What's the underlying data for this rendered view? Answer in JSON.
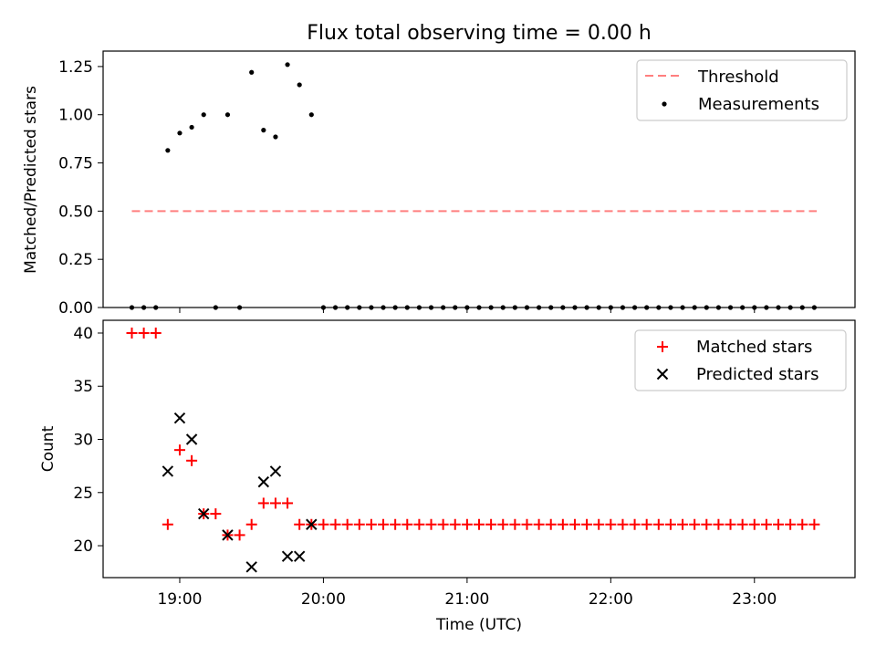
{
  "title": "Flux total observing time = 0.00 h",
  "chart_data": [
    {
      "type": "scatter",
      "ylabel": "Matched/Predicted stars",
      "ylim": [
        0,
        1.33
      ],
      "xlim": [
        "18:28",
        "23:42"
      ],
      "yticks": [
        0.0,
        0.25,
        0.5,
        0.75,
        1.0,
        1.25
      ],
      "ytick_labels": [
        "0.00",
        "0.25",
        "0.50",
        "0.75",
        "1.00",
        "1.25"
      ],
      "legend_position": "top-right",
      "threshold": {
        "name": "Threshold",
        "color": "#ff7f7f",
        "y": 0.5,
        "x": [
          "18:40",
          "23:26"
        ]
      },
      "measurements": {
        "name": "Measurements",
        "color": "#000000",
        "x": [
          "18:40",
          "18:45",
          "18:50",
          "18:55",
          "19:00",
          "19:05",
          "19:10",
          "19:15",
          "19:20",
          "19:25",
          "19:30",
          "19:35",
          "19:40",
          "19:45",
          "19:50",
          "19:55",
          "20:00",
          "20:05",
          "20:10",
          "20:15",
          "20:20",
          "20:25",
          "20:30",
          "20:35",
          "20:40",
          "20:45",
          "20:50",
          "20:55",
          "21:00",
          "21:05",
          "21:10",
          "21:15",
          "21:20",
          "21:25",
          "21:30",
          "21:35",
          "21:40",
          "21:45",
          "21:50",
          "21:55",
          "22:00",
          "22:05",
          "22:10",
          "22:15",
          "22:20",
          "22:25",
          "22:30",
          "22:35",
          "22:40",
          "22:45",
          "22:50",
          "22:55",
          "23:00",
          "23:05",
          "23:10",
          "23:15",
          "23:20",
          "23:25"
        ],
        "y": [
          0,
          0,
          0,
          0.815,
          0.905,
          0.935,
          1.0,
          0,
          1.0,
          0,
          1.22,
          0.92,
          0.885,
          1.26,
          1.155,
          1.0,
          0,
          0,
          0,
          0,
          0,
          0,
          0,
          0,
          0,
          0,
          0,
          0,
          0,
          0,
          0,
          0,
          0,
          0,
          0,
          0,
          0,
          0,
          0,
          0,
          0,
          0,
          0,
          0,
          0,
          0,
          0,
          0,
          0,
          0,
          0,
          0,
          0,
          0,
          0,
          0,
          0,
          0
        ]
      }
    },
    {
      "type": "scatter",
      "xlabel": "Time (UTC)",
      "ylabel": "Count",
      "ylim": [
        17,
        41.2
      ],
      "xlim": [
        "18:28",
        "23:42"
      ],
      "yticks": [
        20,
        25,
        30,
        35,
        40
      ],
      "xtick_labels": [
        "19:00",
        "20:00",
        "21:00",
        "22:00",
        "23:00"
      ],
      "legend_position": "top-right",
      "series": [
        {
          "name": "Matched stars",
          "marker": "plus",
          "color": "#ff0000",
          "x": [
            "18:40",
            "18:45",
            "18:50",
            "18:55",
            "19:00",
            "19:05",
            "19:10",
            "19:15",
            "19:20",
            "19:25",
            "19:30",
            "19:35",
            "19:40",
            "19:45",
            "19:50",
            "19:55",
            "20:00",
            "20:05",
            "20:10",
            "20:15",
            "20:20",
            "20:25",
            "20:30",
            "20:35",
            "20:40",
            "20:45",
            "20:50",
            "20:55",
            "21:00",
            "21:05",
            "21:10",
            "21:15",
            "21:20",
            "21:25",
            "21:30",
            "21:35",
            "21:40",
            "21:45",
            "21:50",
            "21:55",
            "22:00",
            "22:05",
            "22:10",
            "22:15",
            "22:20",
            "22:25",
            "22:30",
            "22:35",
            "22:40",
            "22:45",
            "22:50",
            "22:55",
            "23:00",
            "23:05",
            "23:10",
            "23:15",
            "23:20",
            "23:25"
          ],
          "y": [
            40,
            40,
            40,
            22,
            29,
            28,
            23,
            23,
            21,
            21,
            22,
            24,
            24,
            24,
            22,
            22,
            22,
            22,
            22,
            22,
            22,
            22,
            22,
            22,
            22,
            22,
            22,
            22,
            22,
            22,
            22,
            22,
            22,
            22,
            22,
            22,
            22,
            22,
            22,
            22,
            22,
            22,
            22,
            22,
            22,
            22,
            22,
            22,
            22,
            22,
            22,
            22,
            22,
            22,
            22,
            22,
            22,
            22
          ]
        },
        {
          "name": "Predicted stars",
          "marker": "x",
          "color": "#000000",
          "x": [
            "18:55",
            "19:00",
            "19:05",
            "19:10",
            "19:20",
            "19:30",
            "19:35",
            "19:40",
            "19:45",
            "19:50",
            "19:55"
          ],
          "y": [
            27,
            32,
            30,
            23,
            21,
            18,
            26,
            27,
            19,
            19,
            22
          ]
        }
      ]
    }
  ]
}
